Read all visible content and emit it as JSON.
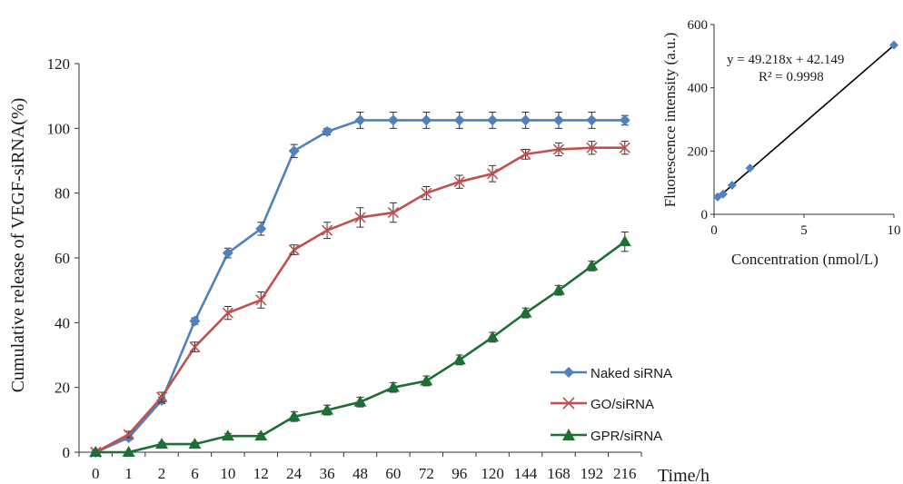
{
  "chart_data": [
    {
      "type": "line",
      "title": "",
      "xlabel": "Time/h",
      "ylabel": "Cumulative release of VEGF-siRNA(%)",
      "categories": [
        "0",
        "1",
        "2",
        "6",
        "10",
        "12",
        "24",
        "36",
        "48",
        "60",
        "72",
        "96",
        "120",
        "144",
        "168",
        "192",
        "216"
      ],
      "ylim": [
        0,
        120
      ],
      "yticks": [
        "0",
        "20",
        "40",
        "60",
        "80",
        "100",
        "120"
      ],
      "grid": false,
      "legend_position": "bottom-right",
      "series": [
        {
          "name": "Naked siRNA",
          "color": "#4f81bd",
          "marker": "diamond",
          "values": [
            0,
            4.5,
            16,
            40.5,
            61.5,
            69,
            93,
            99,
            102.5,
            102.5,
            102.5,
            102.5,
            102.5,
            102.5,
            102.5,
            102.5,
            102.5
          ],
          "errors": [
            0,
            0.8,
            1,
            1,
            1.5,
            2,
            2,
            1,
            2.5,
            2.5,
            2.5,
            2.5,
            2.5,
            2.5,
            2.5,
            2.5,
            1.5
          ]
        },
        {
          "name": "GO/siRNA",
          "color": "#c0504d",
          "marker": "x",
          "values": [
            0,
            5.5,
            17,
            32.5,
            43,
            47,
            62.5,
            68.5,
            72.5,
            74,
            80,
            83.5,
            86,
            92,
            93.5,
            94,
            94
          ],
          "errors": [
            0,
            1,
            1.5,
            1.5,
            2,
            2.5,
            1.5,
            2.5,
            3,
            3,
            2,
            2,
            2.5,
            1.5,
            2,
            2,
            2
          ]
        },
        {
          "name": "GPR/siRNA",
          "color": "#1f6f34",
          "marker": "triangle",
          "values": [
            0,
            0,
            2.5,
            2.5,
            5,
            5,
            11,
            13,
            15.5,
            20,
            22,
            28.5,
            35.5,
            43,
            50,
            57.5,
            65
          ],
          "errors": [
            0,
            0,
            0.5,
            0.5,
            0.8,
            0.8,
            1.5,
            1.5,
            1.5,
            1.5,
            1.5,
            1.5,
            1.5,
            1.5,
            1.5,
            1.5,
            3
          ]
        }
      ]
    },
    {
      "type": "scatter",
      "title": "",
      "xlabel": "Concentration (nmol/L)",
      "ylabel": "Fluorescence intensity (a.u.)",
      "xlim": [
        0,
        10
      ],
      "ylim": [
        0,
        600
      ],
      "xticks": [
        "0",
        "5",
        "10"
      ],
      "yticks": [
        "0",
        "200",
        "400",
        "600"
      ],
      "points": {
        "x": [
          0.2,
          0.5,
          1,
          2,
          10
        ],
        "y": [
          55,
          64,
          92,
          146,
          535
        ]
      },
      "fit": {
        "slope": 49.218,
        "intercept": 42.149
      },
      "equation": "y = 49.218x + 42.149",
      "r2": "R² = 0.9998",
      "marker_color": "#4f81bd",
      "fit_color": "#000000"
    }
  ]
}
